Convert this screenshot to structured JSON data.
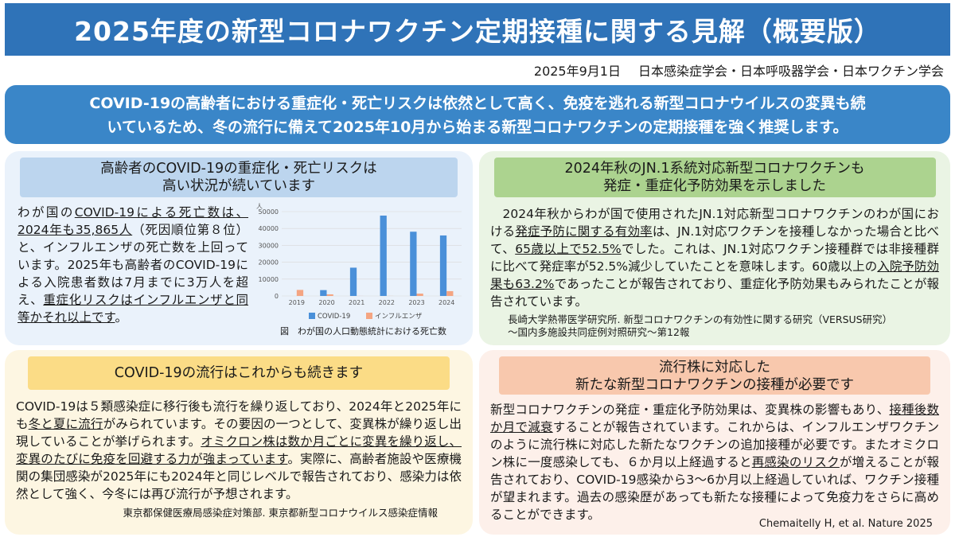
{
  "title": "2025年度の新型コロナワクチン定期接種に関する見解（概要版）",
  "date": "2025年9月1日",
  "organizations": "日本感染症学会・日本呼吸器学会・日本ワクチン学会",
  "lead": {
    "line1": "COVID-19の高齢者における重症化・死亡リスクは依然として高く、免疫を逃れる新型コロナウイルスの変異も続",
    "line2": "いているため、冬の流行に備えて2025年10月から始まる新型コロナワクチンの定期接種を強く推奨します。"
  },
  "panel1": {
    "head1": "高齢者のCOVID-19の重症化・死亡リスクは",
    "head2": "高い状況が続いています",
    "t1": "わが国の",
    "u1": "COVID-19による死亡数は、2024年も35,865人",
    "t2": "（死因順位第８位）と、インフルエンザの死亡数を上回っています。2025年も高齢者のCOVID-19による入院患者数は7月までに3万人を超え、",
    "u2": "重症化リスクはインフルエンザと同等かそれ以上です",
    "t3": "。",
    "caption": "図　わが国の人口動態統計における死亡数"
  },
  "chart_data": {
    "type": "bar",
    "ylabel": "人",
    "ylim": [
      0,
      50000
    ],
    "yticks": [
      "0",
      "10000",
      "20000",
      "30000",
      "40000",
      "50000"
    ],
    "categories": [
      "2019",
      "2020",
      "2021",
      "2022",
      "2023",
      "2024"
    ],
    "series": [
      {
        "name": "COVID-19",
        "values": [
          0,
          3466,
          16766,
          47638,
          38086,
          35865
        ]
      },
      {
        "name": "インフルエンザ",
        "values": [
          3575,
          956,
          22,
          30,
          1382,
          2855
        ]
      }
    ],
    "colors": [
      "#4a90d9",
      "#f4a582"
    ],
    "legend": "bottom"
  },
  "panel2": {
    "head1": "2024年秋のJN.1系統対応新型コロナワクチンも",
    "head2": "発症・重症化予防効果を示しました",
    "t1": "2024年秋からわが国で使用されたJN.1対応新型コロナワクチンのわが国における",
    "u1": "発症予防に関する有効率",
    "t2": "は、JN.1対応ワクチンを接種しなかった場合と比べて、",
    "u2": "65歳以上で52.5%",
    "t3": "でした。これは、JN.1対応ワクチン接種群では非接種群に比べて発症率が52.5%減少していたことを意味します。60歳以上の",
    "u3": "入院予防効果も63.2%",
    "t4": "であったことが報告されており、重症化予防効果もみられたことが報告されています。",
    "ref1": "長崎大学熱帯医学研究所. 新型コロナワクチンの有効性に関する研究（VERSUS研究）",
    "ref2": "〜国内多施設共同症例対照研究〜第12報"
  },
  "panel3": {
    "head": "COVID-19の流行はこれからも続きます",
    "t1": "COVID-19は５類感染症に移行後も流行を繰り返しており、2024年と2025年にも",
    "u1": "冬と夏に流行",
    "t2": "がみられています。その要因の一つとして、変異株が繰り返し出現していることが挙げられます。",
    "u2": "オミクロン株は数か月ごとに変異を繰り返し、変異のたびに免疫を回避する力が強まっています",
    "t3": "。実際に、高齢者施設や医療機関の集団感染が2025年にも2024年と同じレベルで報告されており、感染力は依然として強く、今冬には再び流行が予想されます。",
    "ref": "東京都保健医療局感染症対策部. 東京都新型コロナウイルス感染症情報"
  },
  "panel4": {
    "head1": "流行株に対応した",
    "head2": "新たな新型コロナワクチンの接種が必要です",
    "t1": "新型コロナワクチンの発症・重症化予防効果は、変異株の影響もあり、",
    "u1": "接種後数か月で減衰",
    "t2": "することが報告されています。これからは、インフルエンザワクチンのように流行株に対応した新たなワクチンの追加接種が必要です。またオミクロン株に一度感染しても、６か月以上経過すると",
    "u2": "再感染のリスク",
    "t3": "が増えることが報告されており、COVID-19感染から3〜6か月以上経過していれば、ワクチン接種が望まれます。過去の感染歴があっても新たな接種によって免疫力をさらに高めることができます。",
    "ref": "Chemaitelly H, et al. Nature 2025"
  }
}
